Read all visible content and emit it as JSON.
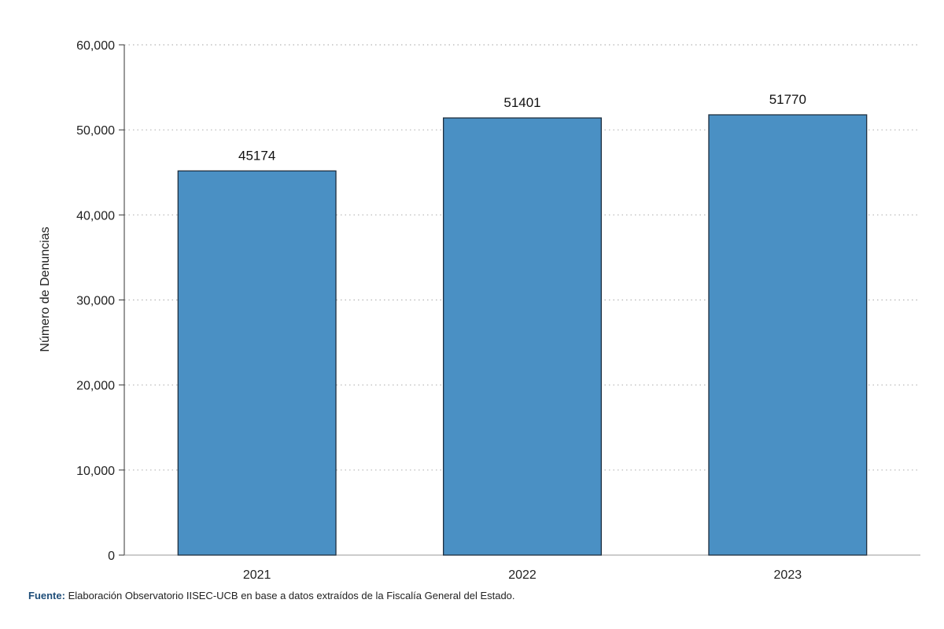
{
  "chart_data": {
    "type": "bar",
    "categories": [
      "2021",
      "2022",
      "2023"
    ],
    "values": [
      45174,
      51401,
      51770
    ],
    "data_labels": [
      "45174",
      "51401",
      "51770"
    ],
    "title": "",
    "xlabel": "",
    "ylabel": "Número de Denuncias",
    "ylim": [
      0,
      60000
    ],
    "yticks": [
      0,
      10000,
      20000,
      30000,
      40000,
      50000,
      60000
    ],
    "ytick_labels": [
      "0",
      "10,000",
      "20,000",
      "30,000",
      "40,000",
      "50,000",
      "60,000"
    ],
    "grid": "horizontal-dotted",
    "legend": "none",
    "bar_color": "#4a90c4",
    "bar_edge_color": "#1f2f3f"
  },
  "source": {
    "prefix": "Fuente:",
    "text": " Elaboración Observatorio IISEC-UCB en base a datos extraídos de la Fiscalía General del Estado."
  }
}
